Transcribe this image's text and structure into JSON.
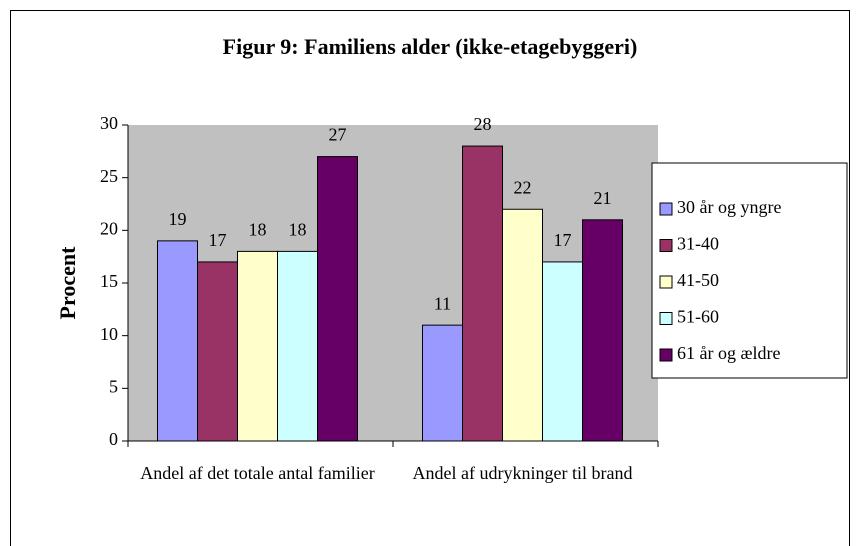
{
  "chart_data": {
    "type": "bar",
    "title": "Figur 9: Familiens alder (ikke-etagebyggeri)",
    "y_label": "Procent",
    "categories": [
      "Andel af det totale antal familier",
      "Andel af udrykninger til brand"
    ],
    "series": [
      {
        "name": "30 år og yngre",
        "color": "#9999ff",
        "values": [
          19,
          11
        ]
      },
      {
        "name": "31-40",
        "color": "#993366",
        "values": [
          17,
          28
        ]
      },
      {
        "name": "41-50",
        "color": "#ffffcc",
        "values": [
          18,
          22
        ]
      },
      {
        "name": "51-60",
        "color": "#ccffff",
        "values": [
          18,
          17
        ]
      },
      {
        "name": "61 år og ældre",
        "color": "#660066",
        "values": [
          27,
          21
        ]
      }
    ],
    "ylim": [
      0,
      30
    ],
    "yticks": [
      0,
      5,
      10,
      15,
      20,
      25,
      30
    ],
    "legend": "right"
  }
}
